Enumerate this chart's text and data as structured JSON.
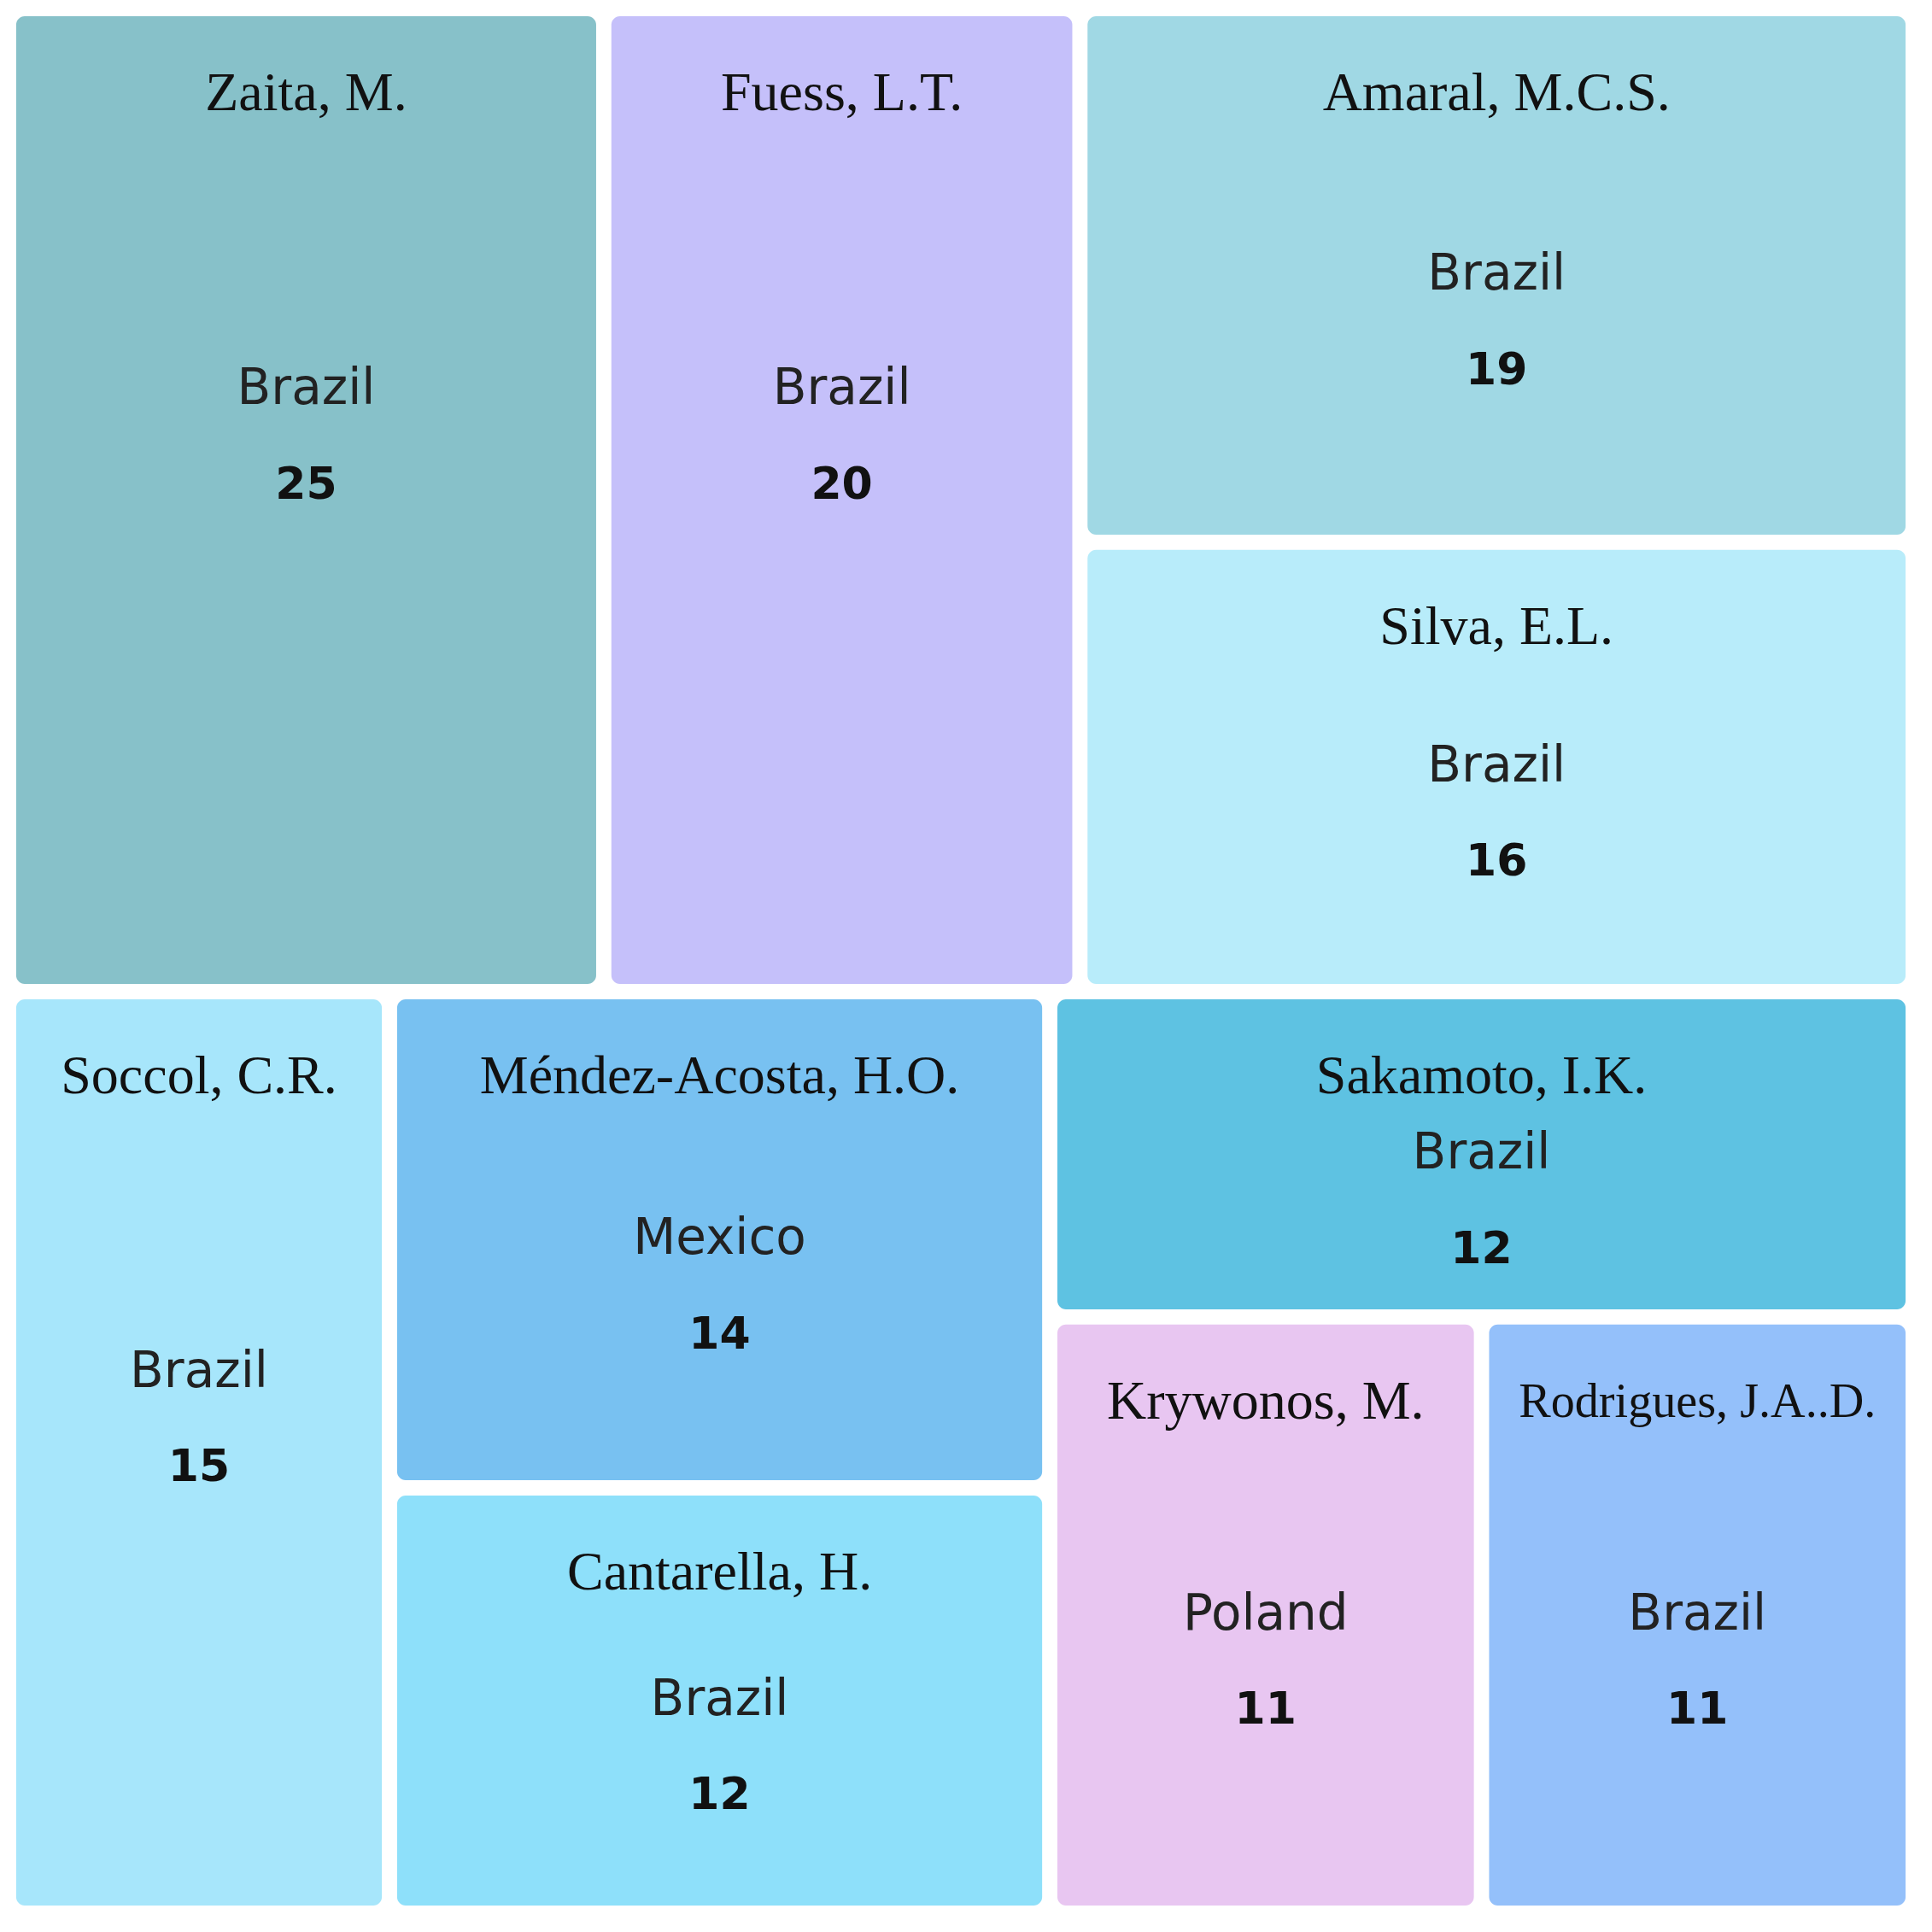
{
  "chart_data": {
    "type": "other",
    "categories": [
      "Zaita, M.",
      "Fuess, L.T.",
      "Amaral, M.C.S.",
      "Silva, E.L.",
      "Soccol, C.R.",
      "Méndez-Acosta, H.O.",
      "Cantarella, H.",
      "Sakamoto, I.K.",
      "Krywonos, M.",
      "Rodrigues, J.A..D."
    ],
    "values": [
      25,
      20,
      19,
      16,
      15,
      14,
      12,
      12,
      11,
      11
    ],
    "colors": [
      "#87c1c9",
      "#c5c0fa",
      "#a0d8e4",
      "#b8ecfa",
      "#a7e6fb",
      "#78c1f1",
      "#8ee0fa",
      "#5ec2e2",
      "#e8c6f1",
      "#94c0fa"
    ],
    "annotations": [
      {
        "text": "Brazil",
        "x": "Zaita, M."
      },
      {
        "text": "Brazil",
        "x": "Fuess, L.T."
      },
      {
        "text": "Brazil",
        "x": "Amaral, M.C.S."
      },
      {
        "text": "Brazil",
        "x": "Silva, E.L."
      },
      {
        "text": "Brazil",
        "x": "Soccol, C.R."
      },
      {
        "text": "Mexico",
        "x": "Méndez-Acosta, H.O."
      },
      {
        "text": "Brazil",
        "x": "Cantarella, H."
      },
      {
        "text": "Brazil",
        "x": "Sakamoto, I.K."
      },
      {
        "text": "Poland",
        "x": "Krywonos, M."
      },
      {
        "text": "Brazil",
        "x": "Rodrigues, J.A..D."
      }
    ],
    "data_labels": true
  }
}
